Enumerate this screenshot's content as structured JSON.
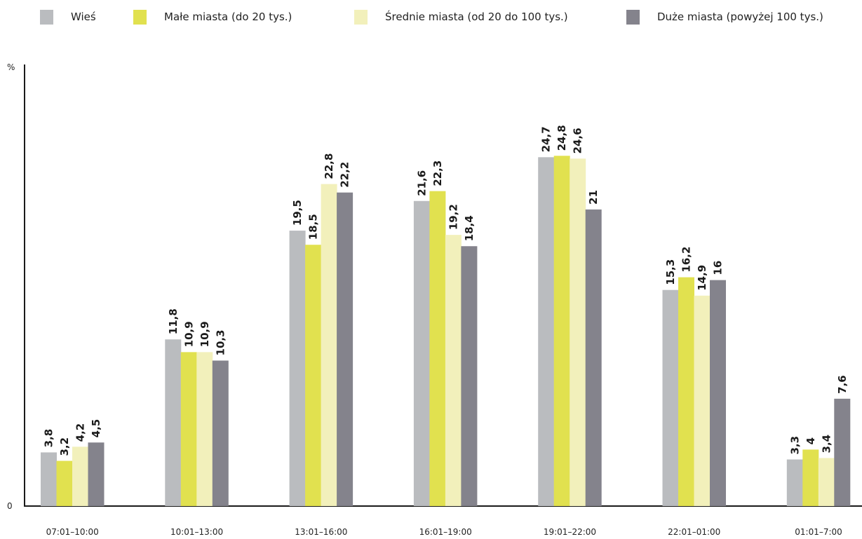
{
  "chart_data": {
    "type": "bar",
    "ylabel": "%",
    "ylim": [
      0,
      33
    ],
    "y_ticks": [
      "0"
    ],
    "categories": [
      "07:01–10:00",
      "10:01–13:00",
      "13:01–16:00",
      "16:01–19:00",
      "19:01–22:00",
      "22:01–01:00",
      "01:01–7:00"
    ],
    "series": [
      {
        "name": "Wieś",
        "color": "#babcbf",
        "values": [
          3.8,
          11.8,
          19.5,
          21.6,
          24.7,
          15.3,
          3.3
        ],
        "labels": [
          "3,8",
          "11,8",
          "19,5",
          "21,6",
          "24,7",
          "15,3",
          "3,3"
        ]
      },
      {
        "name": "Małe miasta (do 20 tys.)",
        "color": "#e1e14f",
        "values": [
          3.2,
          10.9,
          18.5,
          22.3,
          24.8,
          16.2,
          4
        ],
        "labels": [
          "3,2",
          "10,9",
          "18,5",
          "22,3",
          "24,8",
          "16,2",
          "4"
        ]
      },
      {
        "name": "Średnie miasta (od 20 do 100 tys.)",
        "color": "#f2f0bb",
        "values": [
          4.2,
          10.9,
          22.8,
          19.2,
          24.6,
          14.9,
          3.4
        ],
        "labels": [
          "4,2",
          "10,9",
          "22,8",
          "19,2",
          "24,6",
          "14,9",
          "3,4"
        ]
      },
      {
        "name": "Duże miasta (powyżej 100 tys.)",
        "color": "#84838c",
        "values": [
          4.5,
          10.3,
          22.2,
          18.4,
          21,
          16,
          7.6
        ],
        "labels": [
          "4,5",
          "10,3",
          "22,2",
          "18,4",
          "21",
          "16",
          "7,6"
        ]
      }
    ],
    "legend_position": "top",
    "grid": false
  }
}
